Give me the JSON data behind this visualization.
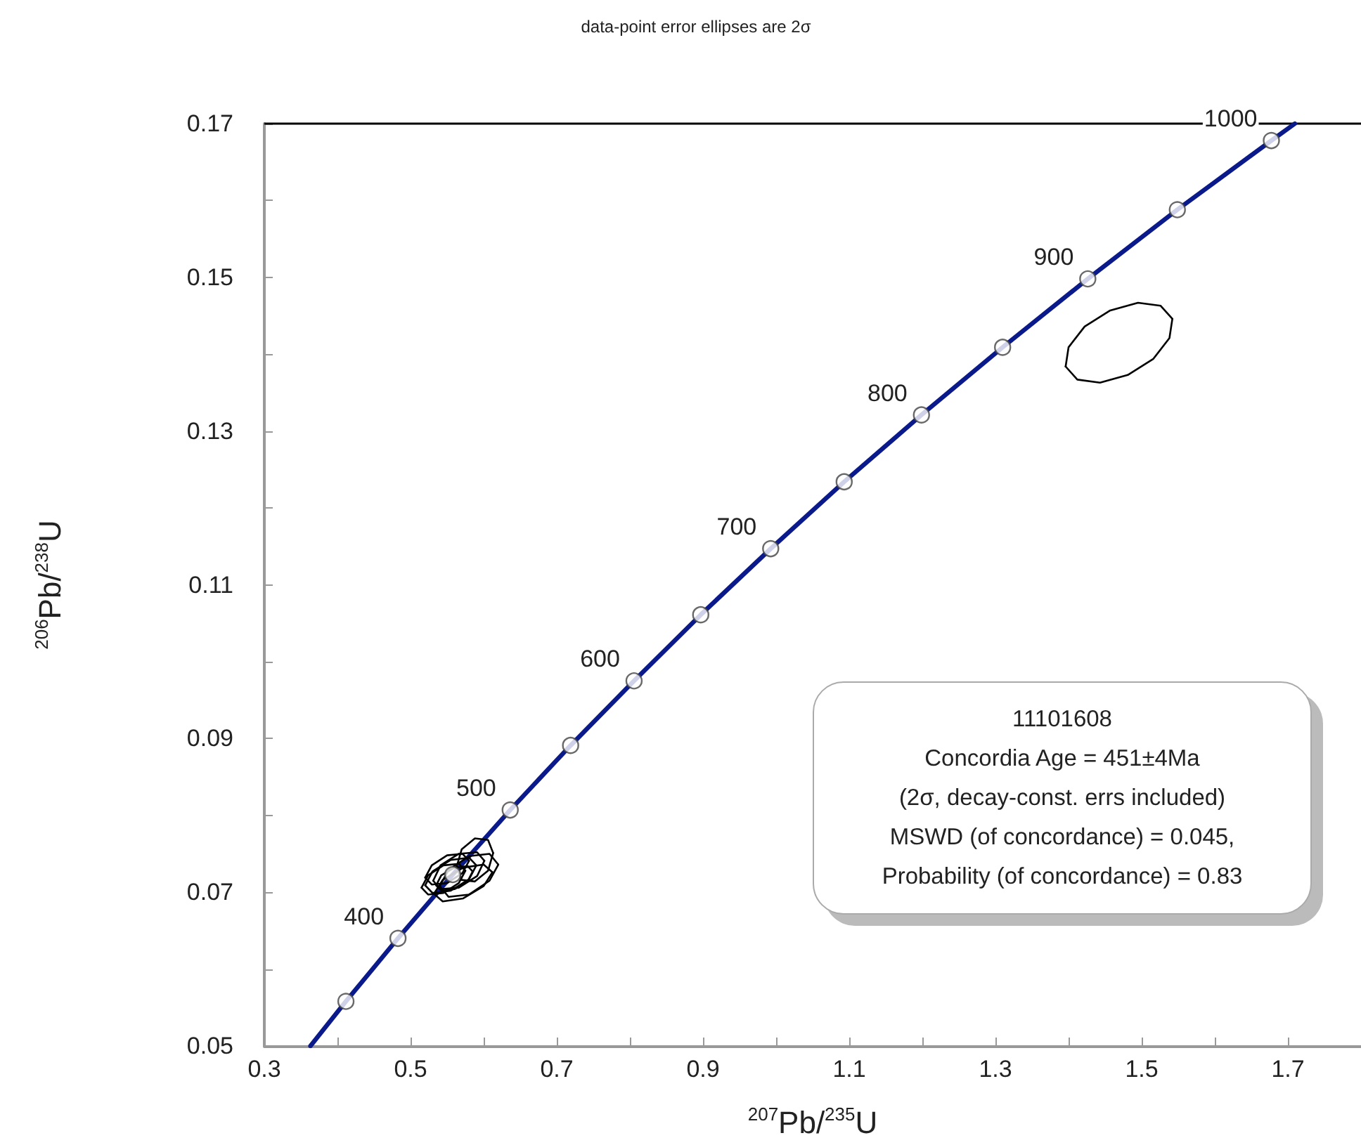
{
  "chart_data": {
    "type": "line",
    "title": "data-point error ellipses are 2σ",
    "xlabel": "$^{207}$Pb/$^{235}$U",
    "ylabel": "$^{206}$Pb/$^{238}$U",
    "xlim": [
      0.3,
      1.8
    ],
    "xticks": [
      0.3,
      {
        "value": 0.4,
        "label": null
      },
      0.5,
      {
        "value": 0.6,
        "label": null
      },
      0.7,
      {
        "value": 0.8,
        "label": null
      },
      0.9,
      {
        "value": 1.0,
        "label": null
      },
      1.1,
      {
        "value": 1.2,
        "label": null
      },
      1.3,
      {
        "value": 1.4,
        "label": null
      },
      1.5,
      {
        "value": 1.6,
        "label": null
      },
      1.7
    ],
    "ylim": [
      0.05,
      0.17
    ],
    "yticks": [
      0.05,
      {
        "value": 0.06,
        "label": null
      },
      0.07,
      {
        "value": 0.08,
        "label": null
      },
      0.09,
      {
        "value": 0.1,
        "label": null
      },
      0.11,
      {
        "value": 0.12,
        "label": null
      },
      0.13,
      {
        "value": 0.14,
        "label": null
      },
      0.15,
      {
        "value": 0.16,
        "label": null
      },
      0.17
    ],
    "grid": false,
    "series": [
      {
        "color": "#0b1a8a",
        "marker": "none",
        "x": [
          0.3631,
          0.4116,
          0.4828,
          0.5577,
          0.6363,
          0.7189,
          0.8057,
          0.8969,
          0.9926,
          1.0931,
          1.1988,
          1.3098,
          1.4263,
          1.5488,
          1.6774,
          1.7095
        ],
        "values": [
          0.05,
          0.0558,
          0.064,
          0.0723,
          0.0807,
          0.0891,
          0.0975,
          0.1061,
          0.1147,
          0.1234,
          0.1321,
          0.1409,
          0.1498,
          0.1588,
          0.1678,
          0.17
        ]
      },
      {
        "type": "scatter",
        "color": "#ffffff",
        "marker": "circle",
        "x": [
          0.4116,
          0.4828,
          0.5577,
          0.6363,
          0.7189,
          0.8057,
          0.8969,
          0.9926,
          1.0931,
          1.1988,
          1.3098,
          1.4263,
          1.5488,
          1.6774
        ],
        "values": [
          0.0558,
          0.064,
          0.0723,
          0.0807,
          0.0891,
          0.0975,
          0.1061,
          0.1147,
          0.1234,
          0.1321,
          0.1409,
          0.1498,
          0.1588,
          0.1678
        ]
      },
      {
        "color": "#000000",
        "marker": "none",
        "x": [
          1.396,
          1.4,
          1.422,
          1.457,
          1.495,
          1.526,
          1.542
        ],
        "values": [
          0.1384,
          0.1409,
          0.1436,
          0.1457,
          0.1467,
          0.1463,
          0.1446
        ]
      },
      {
        "color": "#000000",
        "marker": "none",
        "x": [
          1.396,
          1.412,
          1.443,
          1.481,
          1.516,
          1.538,
          1.542
        ],
        "values": [
          0.1384,
          0.1367,
          0.1363,
          0.1373,
          0.1394,
          0.1421,
          0.1446
        ]
      },
      {
        "color": "#000000",
        "marker": "none",
        "x": [
          0.52,
          0.53,
          0.555,
          0.58,
          0.59
        ],
        "values": [
          0.0709,
          0.0727,
          0.0742,
          0.0745,
          0.0735
        ]
      },
      {
        "color": "#000000",
        "marker": "none",
        "x": [
          0.52,
          0.53,
          0.555,
          0.58,
          0.59
        ],
        "values": [
          0.0709,
          0.0699,
          0.0702,
          0.0717,
          0.0735
        ]
      },
      {
        "color": "#000000",
        "marker": "none",
        "x": [
          0.515,
          0.524,
          0.545,
          0.566,
          0.575
        ],
        "values": [
          0.0706,
          0.0722,
          0.0735,
          0.0737,
          0.0728
        ]
      },
      {
        "color": "#000000",
        "marker": "none",
        "x": [
          0.515,
          0.524,
          0.545,
          0.566,
          0.575
        ],
        "values": [
          0.0706,
          0.0697,
          0.0699,
          0.0712,
          0.0728
        ]
      },
      {
        "color": "#000000",
        "marker": "none",
        "x": [
          0.531,
          0.541,
          0.566,
          0.591,
          0.601
        ],
        "values": [
          0.0715,
          0.0735,
          0.075,
          0.0752,
          0.0741
        ]
      },
      {
        "color": "#000000",
        "marker": "none",
        "x": [
          0.531,
          0.541,
          0.566,
          0.591,
          0.601
        ],
        "values": [
          0.0715,
          0.0704,
          0.0706,
          0.0721,
          0.0741
        ]
      },
      {
        "color": "#000000",
        "marker": "none",
        "x": [
          0.532,
          0.544,
          0.572,
          0.6,
          0.612
        ],
        "values": [
          0.0698,
          0.0716,
          0.0732,
          0.0736,
          0.0726
        ]
      },
      {
        "color": "#000000",
        "marker": "none",
        "x": [
          0.532,
          0.544,
          0.572,
          0.6,
          0.612
        ],
        "values": [
          0.0698,
          0.0688,
          0.0692,
          0.0708,
          0.0726
        ]
      },
      {
        "color": "#000000",
        "marker": "none",
        "x": [
          0.52,
          0.529,
          0.55,
          0.571,
          0.58
        ],
        "values": [
          0.0719,
          0.0735,
          0.0748,
          0.075,
          0.0741
        ]
      },
      {
        "color": "#000000",
        "marker": "none",
        "x": [
          0.52,
          0.529,
          0.55,
          0.571,
          0.58
        ],
        "values": [
          0.0719,
          0.071,
          0.0712,
          0.0725,
          0.0741
        ]
      },
      {
        "color": "#000000",
        "marker": "none",
        "x": [
          0.54,
          0.552,
          0.58,
          0.608,
          0.62
        ],
        "values": [
          0.0708,
          0.0729,
          0.0747,
          0.075,
          0.0736
        ]
      },
      {
        "color": "#000000",
        "marker": "none",
        "x": [
          0.54,
          0.552,
          0.58,
          0.608,
          0.62
        ],
        "values": [
          0.0708,
          0.0694,
          0.0697,
          0.0715,
          0.0736
        ]
      },
      {
        "color": "#000000",
        "marker": "none",
        "x": [
          0.535,
          0.542,
          0.56,
          0.578,
          0.585
        ],
        "values": [
          0.0709,
          0.0722,
          0.0732,
          0.0734,
          0.0727
        ]
      },
      {
        "color": "#000000",
        "marker": "none",
        "x": [
          0.535,
          0.542,
          0.56,
          0.578,
          0.585
        ],
        "values": [
          0.0709,
          0.0702,
          0.0704,
          0.0714,
          0.0727
        ]
      },
      {
        "color": "#000000",
        "marker": "none",
        "x": [
          0.563,
          0.57,
          0.588,
          0.606,
          0.613
        ],
        "values": [
          0.0733,
          0.0756,
          0.077,
          0.0768,
          0.0751
        ]
      },
      {
        "color": "#000000",
        "marker": "none",
        "x": [
          0.563,
          0.57,
          0.588,
          0.606,
          0.613
        ],
        "values": [
          0.0733,
          0.0716,
          0.0714,
          0.0728,
          0.0751
        ]
      }
    ],
    "annotations": [
      {
        "text": "400",
        "x": 0.4828,
        "y": 0.064
      },
      {
        "text": "500",
        "x": 0.6363,
        "y": 0.0807
      },
      {
        "text": "600",
        "x": 0.8057,
        "y": 0.0975
      },
      {
        "text": "700",
        "x": 0.9926,
        "y": 0.1147
      },
      {
        "text": "800",
        "x": 1.1988,
        "y": 0.1321
      },
      {
        "text": "900",
        "x": 1.4263,
        "y": 0.1498
      },
      {
        "text": "1000",
        "x": 1.6774,
        "y": 0.1678
      },
      "11101608",
      "Concordia Age = 451±4Ma",
      "(2σ, decay-const. errs included)",
      "MSWD (of concordance) = 0.045,",
      "Probability (of concordance) = 0.83"
    ]
  }
}
